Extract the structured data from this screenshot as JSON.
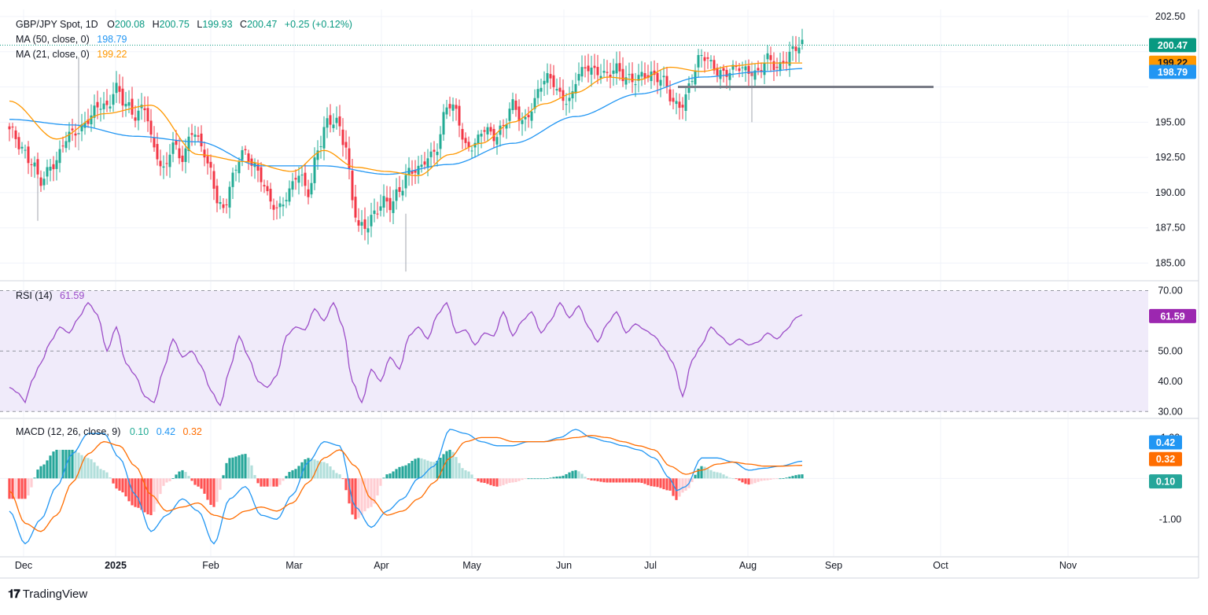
{
  "header": {
    "symbol": "GBP/JPY Spot, 1D",
    "open_label": "O",
    "open": "200.08",
    "high_label": "H",
    "high": "200.75",
    "low_label": "L",
    "low": "199.93",
    "close_label": "C",
    "close": "200.47",
    "change": "+0.25 (+0.12%)"
  },
  "legend": {
    "ma50": {
      "label": "MA (50, close, 0)",
      "value": "198.79"
    },
    "ma21": {
      "label": "MA (21, close, 0)",
      "value": "199.22"
    },
    "rsi": {
      "label": "RSI (14)",
      "value": "61.59"
    },
    "macd": {
      "label": "MACD (12, 26, close, 9)",
      "hist": "0.10",
      "macd": "0.42",
      "signal": "0.32"
    }
  },
  "colors": {
    "up": "#22ab94",
    "down": "#f23645",
    "ma50": "#2196f3",
    "ma21": "#ff9800",
    "rsi": "#9c4dc8",
    "rsi_band": "#f0ebfa",
    "macd": "#2196f3",
    "signal": "#ff6d00",
    "hist_up_strong": "#26a69a",
    "hist_up_weak": "#b2dfdb",
    "hist_down_strong": "#ff5252",
    "hist_down_weak": "#ffcdd2",
    "last_price_tag": "#089981"
  },
  "brand": "TradingView",
  "chart_data": [
    {
      "type": "candlestick",
      "pane": "price",
      "title": "GBP/JPY Spot, 1D",
      "x_ticks": [
        "Dec",
        "2025",
        "Feb",
        "Mar",
        "Apr",
        "May",
        "Jun",
        "Jul",
        "Aug",
        "Sep",
        "Oct",
        "Nov"
      ],
      "y_ticks": [
        "202.50",
        "195.00",
        "192.50",
        "190.00",
        "187.50",
        "185.00"
      ],
      "ylim": [
        183.8,
        203.0
      ],
      "price_tags": [
        {
          "name": "last",
          "value": 200.47,
          "label": "200.47"
        },
        {
          "name": "ma21",
          "value": 199.22,
          "label": "199.22"
        },
        {
          "name": "ma50",
          "value": 198.79,
          "label": "198.79"
        }
      ],
      "support_level": 197.5,
      "keypoints": [
        [
          0,
          194.3
        ],
        [
          4,
          193.2
        ],
        [
          7,
          192.3
        ],
        [
          10,
          190.6
        ],
        [
          14,
          192.1
        ],
        [
          18,
          193.9
        ],
        [
          22,
          194.2
        ],
        [
          25,
          195.4
        ],
        [
          28,
          196.2
        ],
        [
          31,
          195.8
        ],
        [
          34,
          197.6
        ],
        [
          37,
          196.4
        ],
        [
          40,
          195.2
        ],
        [
          43,
          196.1
        ],
        [
          46,
          193.3
        ],
        [
          49,
          191.4
        ],
        [
          52,
          193.3
        ],
        [
          55,
          192.6
        ],
        [
          58,
          194.4
        ],
        [
          61,
          193.1
        ],
        [
          64,
          191.6
        ],
        [
          66,
          189.7
        ],
        [
          68,
          188.7
        ],
        [
          71,
          190.9
        ],
        [
          74,
          193.1
        ],
        [
          77,
          192.3
        ],
        [
          80,
          190.8
        ],
        [
          83,
          189.3
        ],
        [
          86,
          189.1
        ],
        [
          89,
          190.0
        ],
        [
          92,
          191.3
        ],
        [
          95,
          190.2
        ],
        [
          98,
          193.0
        ],
        [
          101,
          194.8
        ],
        [
          104,
          195.2
        ],
        [
          107,
          193.4
        ],
        [
          109,
          189.3
        ],
        [
          111,
          187.4
        ],
        [
          113,
          187.6
        ],
        [
          116,
          188.7
        ],
        [
          119,
          189.3
        ],
        [
          121,
          188.9
        ],
        [
          124,
          190.3
        ],
        [
          127,
          191.6
        ],
        [
          130,
          191.4
        ],
        [
          133,
          192.5
        ],
        [
          136,
          193.4
        ],
        [
          139,
          196.1
        ],
        [
          142,
          195.7
        ],
        [
          145,
          193.4
        ],
        [
          148,
          193.4
        ],
        [
          151,
          194.4
        ],
        [
          154,
          194.1
        ],
        [
          157,
          194.8
        ],
        [
          160,
          196.1
        ],
        [
          163,
          195.0
        ],
        [
          166,
          196.1
        ],
        [
          169,
          197.6
        ],
        [
          172,
          198.1
        ],
        [
          175,
          197.1
        ],
        [
          178,
          196.4
        ],
        [
          181,
          198.3
        ],
        [
          184,
          199.1
        ],
        [
          187,
          198.6
        ],
        [
          190,
          198.1
        ],
        [
          193,
          198.9
        ],
        [
          196,
          198.3
        ],
        [
          199,
          197.8
        ],
        [
          202,
          198.3
        ],
        [
          205,
          198.5
        ],
        [
          208,
          197.9
        ],
        [
          211,
          196.1
        ],
        [
          214,
          196.4
        ],
        [
          217,
          198.3
        ],
        [
          220,
          199.6
        ],
        [
          223,
          199.2
        ],
        [
          226,
          198.6
        ],
        [
          229,
          198.4
        ],
        [
          232,
          198.9
        ],
        [
          235,
          198.8
        ],
        [
          238,
          198.4
        ],
        [
          241,
          199.4
        ],
        [
          244,
          199.0
        ],
        [
          247,
          199.6
        ],
        [
          250,
          200.1
        ],
        [
          252,
          200.5
        ]
      ],
      "ma50_path": [
        [
          0,
          195.2
        ],
        [
          20,
          194.8
        ],
        [
          40,
          194.0
        ],
        [
          60,
          193.6
        ],
        [
          80,
          191.9
        ],
        [
          100,
          191.9
        ],
        [
          120,
          191.3
        ],
        [
          140,
          192.0
        ],
        [
          160,
          193.5
        ],
        [
          180,
          195.4
        ],
        [
          200,
          197.0
        ],
        [
          220,
          198.2
        ],
        [
          240,
          198.6
        ],
        [
          252,
          198.8
        ]
      ],
      "ma21_path": [
        [
          0,
          196.5
        ],
        [
          15,
          193.8
        ],
        [
          30,
          195.6
        ],
        [
          45,
          196.2
        ],
        [
          60,
          192.7
        ],
        [
          75,
          192.2
        ],
        [
          90,
          191.5
        ],
        [
          100,
          193.0
        ],
        [
          110,
          191.8
        ],
        [
          120,
          191.5
        ],
        [
          130,
          191.2
        ],
        [
          140,
          192.7
        ],
        [
          150,
          193.5
        ],
        [
          160,
          195.0
        ],
        [
          170,
          196.3
        ],
        [
          180,
          197.1
        ],
        [
          190,
          198.2
        ],
        [
          200,
          198.0
        ],
        [
          210,
          198.9
        ],
        [
          220,
          198.6
        ],
        [
          230,
          199.0
        ],
        [
          240,
          199.2
        ],
        [
          252,
          199.2
        ]
      ]
    },
    {
      "type": "line",
      "pane": "rsi",
      "title": "RSI (14)",
      "y_ticks": [
        "70.00",
        "50.00",
        "40.00",
        "30.00"
      ],
      "ylim": [
        28,
        73
      ],
      "band": [
        30,
        70
      ],
      "midline": 50,
      "last_value": 61.59,
      "keypoints": [
        [
          0,
          38
        ],
        [
          3,
          36
        ],
        [
          5,
          33
        ],
        [
          7,
          40
        ],
        [
          10,
          46
        ],
        [
          13,
          53
        ],
        [
          16,
          58
        ],
        [
          19,
          56
        ],
        [
          22,
          61
        ],
        [
          25,
          66
        ],
        [
          28,
          62
        ],
        [
          31,
          50
        ],
        [
          34,
          58
        ],
        [
          37,
          46
        ],
        [
          40,
          42
        ],
        [
          43,
          35
        ],
        [
          46,
          33
        ],
        [
          49,
          44
        ],
        [
          52,
          54
        ],
        [
          55,
          48
        ],
        [
          58,
          50
        ],
        [
          61,
          45
        ],
        [
          64,
          37
        ],
        [
          67,
          32
        ],
        [
          70,
          44
        ],
        [
          73,
          55
        ],
        [
          76,
          48
        ],
        [
          79,
          40
        ],
        [
          82,
          38
        ],
        [
          85,
          42
        ],
        [
          88,
          55
        ],
        [
          91,
          58
        ],
        [
          94,
          57
        ],
        [
          97,
          64
        ],
        [
          100,
          60
        ],
        [
          103,
          66
        ],
        [
          106,
          58
        ],
        [
          109,
          40
        ],
        [
          112,
          33
        ],
        [
          115,
          44
        ],
        [
          118,
          40
        ],
        [
          121,
          48
        ],
        [
          124,
          44
        ],
        [
          127,
          55
        ],
        [
          130,
          58
        ],
        [
          133,
          54
        ],
        [
          136,
          62
        ],
        [
          139,
          66
        ],
        [
          142,
          56
        ],
        [
          145,
          57
        ],
        [
          148,
          52
        ],
        [
          151,
          56
        ],
        [
          154,
          55
        ],
        [
          157,
          63
        ],
        [
          160,
          55
        ],
        [
          163,
          60
        ],
        [
          166,
          63
        ],
        [
          169,
          56
        ],
        [
          172,
          60
        ],
        [
          175,
          66
        ],
        [
          178,
          61
        ],
        [
          181,
          65
        ],
        [
          184,
          58
        ],
        [
          187,
          53
        ],
        [
          190,
          59
        ],
        [
          193,
          63
        ],
        [
          196,
          56
        ],
        [
          199,
          59
        ],
        [
          202,
          57
        ],
        [
          205,
          55
        ],
        [
          208,
          51
        ],
        [
          211,
          46
        ],
        [
          214,
          35
        ],
        [
          217,
          47
        ],
        [
          220,
          52
        ],
        [
          223,
          58
        ],
        [
          226,
          55
        ],
        [
          229,
          52
        ],
        [
          232,
          54
        ],
        [
          235,
          52
        ],
        [
          238,
          53
        ],
        [
          241,
          56
        ],
        [
          244,
          54
        ],
        [
          247,
          57
        ],
        [
          250,
          61
        ],
        [
          252,
          62
        ]
      ]
    },
    {
      "type": "macd",
      "pane": "macd",
      "title": "MACD (12, 26, close, 9)",
      "y_ticks": [
        "1.00",
        "-1.00"
      ],
      "ylim": [
        -1.9,
        1.45
      ],
      "last_values": {
        "histogram": 0.1,
        "macd": 0.42,
        "signal": 0.32
      },
      "macd_keypoints": [
        [
          0,
          -0.8
        ],
        [
          5,
          -1.6
        ],
        [
          10,
          -1.0
        ],
        [
          15,
          -0.2
        ],
        [
          20,
          0.6
        ],
        [
          25,
          1.1
        ],
        [
          30,
          1.1
        ],
        [
          35,
          0.5
        ],
        [
          40,
          -0.4
        ],
        [
          45,
          -1.3
        ],
        [
          50,
          -0.9
        ],
        [
          55,
          -0.5
        ],
        [
          60,
          -0.8
        ],
        [
          65,
          -1.6
        ],
        [
          70,
          -0.5
        ],
        [
          75,
          -0.2
        ],
        [
          80,
          -0.9
        ],
        [
          85,
          -1.0
        ],
        [
          90,
          -0.4
        ],
        [
          95,
          0.4
        ],
        [
          100,
          0.9
        ],
        [
          105,
          0.8
        ],
        [
          110,
          -0.7
        ],
        [
          115,
          -1.2
        ],
        [
          120,
          -0.8
        ],
        [
          125,
          -0.5
        ],
        [
          130,
          0.0
        ],
        [
          135,
          0.3
        ],
        [
          140,
          1.2
        ],
        [
          145,
          1.1
        ],
        [
          150,
          0.9
        ],
        [
          155,
          0.8
        ],
        [
          160,
          0.8
        ],
        [
          165,
          0.9
        ],
        [
          170,
          0.9
        ],
        [
          175,
          1.0
        ],
        [
          180,
          1.2
        ],
        [
          185,
          1.0
        ],
        [
          190,
          0.9
        ],
        [
          195,
          0.8
        ],
        [
          200,
          0.7
        ],
        [
          205,
          0.5
        ],
        [
          210,
          0.0
        ],
        [
          212,
          -0.3
        ],
        [
          215,
          -0.2
        ],
        [
          220,
          0.5
        ],
        [
          225,
          0.5
        ],
        [
          230,
          0.4
        ],
        [
          235,
          0.2
        ],
        [
          240,
          0.25
        ],
        [
          245,
          0.3
        ],
        [
          252,
          0.42
        ]
      ],
      "signal_keypoints": [
        [
          0,
          -0.3
        ],
        [
          5,
          -1.1
        ],
        [
          10,
          -1.3
        ],
        [
          15,
          -0.9
        ],
        [
          20,
          -0.1
        ],
        [
          25,
          0.6
        ],
        [
          30,
          0.9
        ],
        [
          35,
          0.8
        ],
        [
          40,
          0.3
        ],
        [
          45,
          -0.4
        ],
        [
          50,
          -0.8
        ],
        [
          55,
          -0.7
        ],
        [
          60,
          -0.6
        ],
        [
          65,
          -0.9
        ],
        [
          70,
          -1.0
        ],
        [
          75,
          -0.8
        ],
        [
          80,
          -0.7
        ],
        [
          85,
          -0.8
        ],
        [
          90,
          -0.6
        ],
        [
          95,
          -0.1
        ],
        [
          100,
          0.5
        ],
        [
          105,
          0.7
        ],
        [
          110,
          0.3
        ],
        [
          115,
          -0.5
        ],
        [
          120,
          -0.9
        ],
        [
          125,
          -0.8
        ],
        [
          130,
          -0.5
        ],
        [
          135,
          -0.1
        ],
        [
          140,
          0.5
        ],
        [
          145,
          0.9
        ],
        [
          150,
          1.0
        ],
        [
          155,
          1.0
        ],
        [
          160,
          0.9
        ],
        [
          165,
          0.9
        ],
        [
          170,
          0.9
        ],
        [
          175,
          0.95
        ],
        [
          180,
          1.0
        ],
        [
          185,
          1.05
        ],
        [
          190,
          1.0
        ],
        [
          195,
          0.9
        ],
        [
          200,
          0.8
        ],
        [
          205,
          0.7
        ],
        [
          210,
          0.3
        ],
        [
          215,
          0.1
        ],
        [
          220,
          0.2
        ],
        [
          225,
          0.35
        ],
        [
          230,
          0.4
        ],
        [
          235,
          0.35
        ],
        [
          240,
          0.3
        ],
        [
          245,
          0.3
        ],
        [
          252,
          0.32
        ]
      ]
    }
  ]
}
